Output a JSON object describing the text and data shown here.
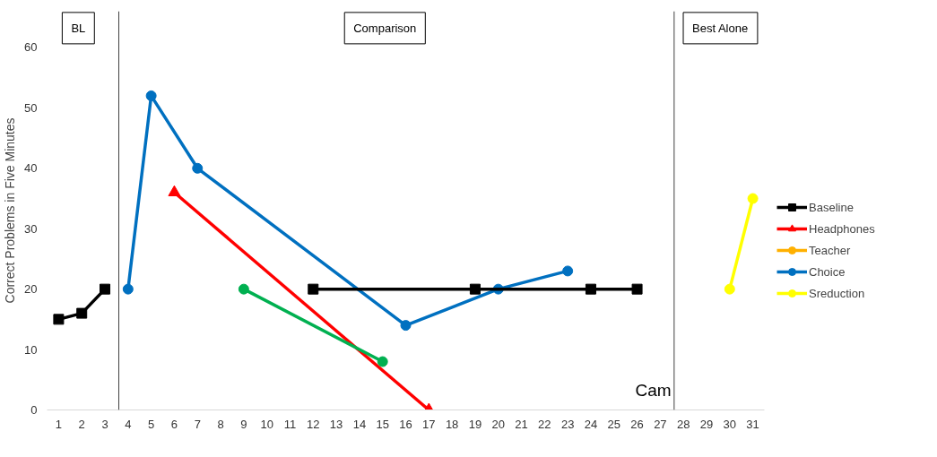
{
  "chart_data": {
    "type": "line",
    "ylabel": "Correct Problems in Five Minutes",
    "x": [
      1,
      2,
      3,
      4,
      5,
      6,
      7,
      8,
      9,
      10,
      11,
      12,
      13,
      14,
      15,
      16,
      17,
      18,
      19,
      20,
      21,
      22,
      23,
      24,
      25,
      26,
      27,
      28,
      29,
      30,
      31
    ],
    "series": [
      {
        "name": "Baseline",
        "color": "#000000",
        "marker": "square",
        "values": [
          15,
          16,
          20,
          null,
          null,
          null,
          null,
          null,
          null,
          null,
          null,
          null,
          null,
          null,
          null,
          null,
          null,
          null,
          null,
          null,
          null,
          null,
          null,
          null,
          null,
          null,
          null,
          null,
          null,
          null,
          null
        ]
      },
      {
        "name": "Headphones",
        "color": "#ff0000",
        "marker": "triangle",
        "values": [
          null,
          null,
          null,
          null,
          null,
          36,
          null,
          null,
          null,
          null,
          null,
          null,
          null,
          null,
          null,
          null,
          0,
          null,
          null,
          null,
          null,
          null,
          null,
          null,
          null,
          null,
          null,
          null,
          null,
          null,
          null
        ]
      },
      {
        "name": "Teacher",
        "color": "#ffb000",
        "marker": "circle",
        "values": [
          null,
          null,
          null,
          null,
          null,
          null,
          null,
          null,
          null,
          null,
          null,
          null,
          null,
          null,
          null,
          null,
          null,
          null,
          null,
          null,
          null,
          null,
          null,
          null,
          null,
          null,
          null,
          null,
          null,
          null,
          null
        ]
      },
      {
        "name": "Choice",
        "color": "#0070c0",
        "marker": "circle",
        "values": [
          null,
          null,
          null,
          20,
          52,
          null,
          40,
          null,
          null,
          null,
          null,
          null,
          null,
          null,
          null,
          14,
          null,
          null,
          null,
          20,
          null,
          null,
          23,
          null,
          null,
          null,
          null,
          null,
          null,
          null,
          null
        ]
      },
      {
        "name": "Sreduction",
        "color": "#ffff00",
        "marker": "circle",
        "values": [
          null,
          null,
          null,
          null,
          null,
          null,
          null,
          null,
          null,
          null,
          null,
          null,
          null,
          null,
          null,
          null,
          null,
          null,
          null,
          null,
          null,
          null,
          null,
          null,
          null,
          null,
          null,
          null,
          null,
          20,
          35
        ]
      },
      {
        "color": "#00b050",
        "marker": "circle",
        "values": [
          null,
          null,
          null,
          null,
          null,
          null,
          null,
          null,
          20,
          null,
          null,
          null,
          null,
          null,
          8,
          null,
          null,
          null,
          null,
          null,
          null,
          null,
          null,
          null,
          null,
          null,
          null,
          null,
          null,
          null,
          null
        ]
      },
      {
        "color": "#000000",
        "marker": "square",
        "values": [
          null,
          null,
          null,
          null,
          null,
          null,
          null,
          null,
          null,
          null,
          null,
          20,
          null,
          null,
          null,
          null,
          null,
          null,
          20,
          null,
          null,
          null,
          null,
          20,
          null,
          20,
          null,
          null,
          null,
          null,
          null
        ]
      }
    ],
    "xlim": [
      0.5,
      31.5
    ],
    "xticks": [
      1,
      2,
      3,
      4,
      5,
      6,
      7,
      8,
      9,
      10,
      11,
      12,
      13,
      14,
      15,
      16,
      17,
      18,
      19,
      20,
      21,
      22,
      23,
      24,
      25,
      26,
      27,
      28,
      29,
      30,
      31
    ],
    "ylim": [
      0,
      66
    ],
    "yticks": [
      0,
      10,
      20,
      30,
      40,
      50,
      60
    ],
    "ref_lines": [
      {
        "axis": "x",
        "value": 3.6,
        "color": "#404040"
      },
      {
        "axis": "x",
        "value": 27.6,
        "color": "#404040"
      }
    ],
    "annotations": [
      "BL",
      "Comparison",
      "Best Alone",
      "Cam"
    ],
    "grid": false,
    "legend": "right",
    "line_style": "solid"
  }
}
